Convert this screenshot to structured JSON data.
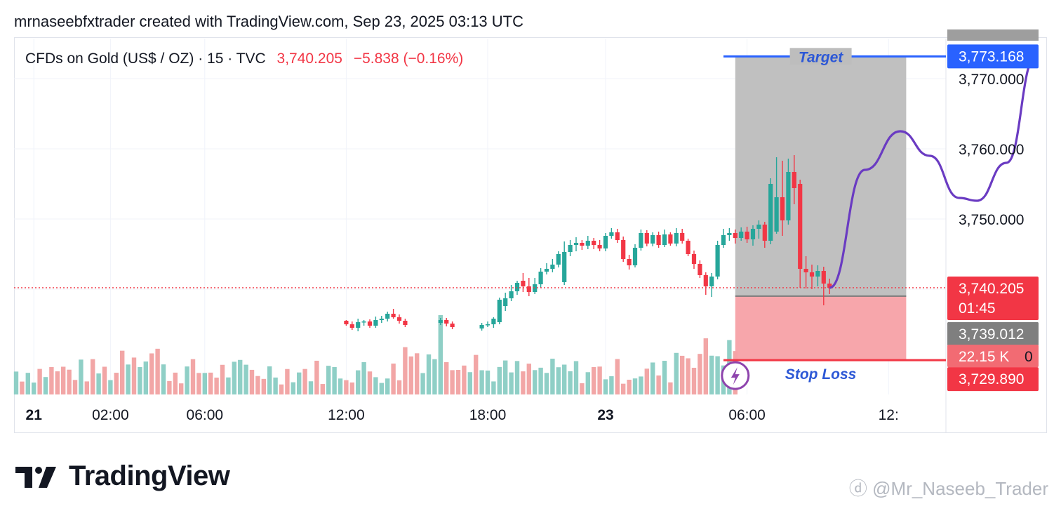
{
  "header": {
    "attribution": "mrnaseebfxtrader created with TradingView.com, Sep 23, 2025 03:13 UTC"
  },
  "symbol": {
    "description": "CFDs on Gold (US$ / OZ) · 15 · TVC",
    "last": "3,740.205",
    "change": "−5.838 (−0.16%)"
  },
  "brand": {
    "name": "TradingView"
  },
  "watermark": {
    "text": "@Mr_Naseeb_Trader"
  },
  "colors": {
    "up": "#26a69a",
    "down": "#f23645",
    "volume_up": "#8fcfc6",
    "volume_down": "#f2a6a6",
    "target_line": "#2962ff",
    "target_text": "#2d58d6",
    "profit_zone": "#bdbdbd",
    "loss_zone": "#f7a1a7",
    "projection": "#6a3bc2",
    "stop_line": "#f23645"
  },
  "chart_data": {
    "type": "candlestick",
    "symbol": "CFDs on Gold (US$ / OZ)",
    "interval": "15",
    "ylim": [
      3735.0,
      3775.0
    ],
    "price_ticks": [
      "3,770.000",
      "3,760.000",
      "3,750.000"
    ],
    "time_labels": [
      {
        "label": "21",
        "bold": true,
        "bar": 3
      },
      {
        "label": "02:00",
        "bold": false,
        "bar": 16
      },
      {
        "label": "06:00",
        "bold": false,
        "bar": 32
      },
      {
        "label": "12:00",
        "bold": false,
        "bar": 56
      },
      {
        "label": "18:00",
        "bold": false,
        "bar": 80
      },
      {
        "label": "23",
        "bold": true,
        "bar": 100
      },
      {
        "label": "06:00",
        "bold": false,
        "bar": 124
      },
      {
        "label": "12:",
        "bold": false,
        "bar": 148
      }
    ],
    "candles": [
      [
        56,
        3735.5,
        3735.0,
        3735.6,
        3734.8
      ],
      [
        57,
        3735.0,
        3734.5,
        3735.4,
        3734.2
      ],
      [
        58,
        3734.5,
        3735.3,
        3735.8,
        3734.0
      ],
      [
        59,
        3735.3,
        3735.4,
        3735.6,
        3734.8
      ],
      [
        60,
        3735.4,
        3734.8,
        3735.7,
        3734.5
      ],
      [
        61,
        3734.8,
        3735.6,
        3736.1,
        3734.5
      ],
      [
        62,
        3735.6,
        3735.8,
        3736.2,
        3735.2
      ],
      [
        63,
        3735.8,
        3736.5,
        3736.8,
        3735.4
      ],
      [
        64,
        3736.5,
        3736.0,
        3737.2,
        3735.8
      ],
      [
        65,
        3736.0,
        3735.5,
        3736.4,
        3735.1
      ],
      [
        66,
        3735.5,
        3734.9,
        3735.8,
        3734.6
      ],
      [
        72,
        3735.2,
        3735.6,
        3735.9,
        3734.9
      ],
      [
        73,
        3735.6,
        3735.1,
        3735.9,
        3734.7
      ],
      [
        74,
        3735.1,
        3734.6,
        3735.4,
        3734.3
      ],
      [
        79,
        3734.4,
        3734.9,
        3735.2,
        3734.1
      ],
      [
        80,
        3734.9,
        3735.0,
        3735.4,
        3734.6
      ],
      [
        81,
        3735.0,
        3735.8,
        3736.0,
        3734.5
      ],
      [
        82,
        3735.3,
        3738.5,
        3738.8,
        3735.0
      ],
      [
        83,
        3737.6,
        3738.7,
        3739.5,
        3736.9
      ],
      [
        84,
        3738.7,
        3739.7,
        3740.6,
        3738.3
      ],
      [
        85,
        3739.7,
        3740.9,
        3741.2,
        3739.2
      ],
      [
        86,
        3741.2,
        3740.4,
        3742.3,
        3739.6
      ],
      [
        87,
        3740.4,
        3739.6,
        3741.6,
        3739.0
      ],
      [
        88,
        3739.6,
        3740.7,
        3741.6,
        3739.3
      ],
      [
        89,
        3740.7,
        3742.5,
        3743.0,
        3740.2
      ],
      [
        90,
        3742.5,
        3742.9,
        3743.7,
        3742.1
      ],
      [
        91,
        3742.9,
        3743.5,
        3744.3,
        3742.4
      ],
      [
        92,
        3743.5,
        3745.0,
        3745.4,
        3743.1
      ],
      [
        93,
        3741.0,
        3745.3,
        3746.8,
        3740.6
      ],
      [
        94,
        3745.3,
        3746.3,
        3747.0,
        3744.7
      ],
      [
        95,
        3746.3,
        3746.6,
        3747.4,
        3745.4
      ],
      [
        96,
        3746.6,
        3746.2,
        3747.0,
        3745.6
      ],
      [
        97,
        3746.2,
        3746.9,
        3747.6,
        3745.7
      ],
      [
        98,
        3746.9,
        3746.3,
        3747.3,
        3745.7
      ],
      [
        99,
        3746.3,
        3745.8,
        3747.0,
        3745.4
      ],
      [
        100,
        3745.8,
        3747.6,
        3748.0,
        3745.4
      ],
      [
        101,
        3747.6,
        3748.1,
        3748.7,
        3747.2
      ],
      [
        102,
        3748.1,
        3747.0,
        3748.6,
        3746.6
      ],
      [
        103,
        3747.0,
        3744.3,
        3747.5,
        3743.9
      ],
      [
        104,
        3744.3,
        3743.4,
        3744.9,
        3742.8
      ],
      [
        105,
        3743.4,
        3745.9,
        3746.4,
        3743.1
      ],
      [
        106,
        3745.9,
        3748.0,
        3748.5,
        3745.5
      ],
      [
        107,
        3748.0,
        3746.5,
        3748.4,
        3746.1
      ],
      [
        108,
        3746.5,
        3747.7,
        3748.1,
        3746.1
      ],
      [
        109,
        3747.7,
        3746.3,
        3748.2,
        3745.9
      ],
      [
        110,
        3746.3,
        3747.8,
        3748.5,
        3746.0
      ],
      [
        111,
        3747.8,
        3746.5,
        3748.1,
        3746.2
      ],
      [
        112,
        3746.5,
        3748.0,
        3748.7,
        3746.1
      ],
      [
        113,
        3748.0,
        3746.9,
        3748.6,
        3746.5
      ],
      [
        114,
        3746.9,
        3745.0,
        3747.2,
        3744.7
      ],
      [
        115,
        3745.0,
        3743.6,
        3745.5,
        3742.9
      ],
      [
        116,
        3743.6,
        3742.0,
        3744.1,
        3741.6
      ],
      [
        117,
        3742.0,
        3740.4,
        3742.4,
        3739.2
      ],
      [
        118,
        3740.4,
        3741.8,
        3742.3,
        3738.9
      ],
      [
        119,
        3741.8,
        3746.3,
        3746.9,
        3741.4
      ],
      [
        120,
        3746.3,
        3747.7,
        3748.6,
        3745.9
      ],
      [
        121,
        3747.7,
        3748.0,
        3748.7,
        3746.9
      ],
      [
        122,
        3748.0,
        3747.3,
        3748.5,
        3746.5
      ],
      [
        123,
        3747.3,
        3748.2,
        3748.8,
        3746.9
      ],
      [
        124,
        3748.2,
        3747.1,
        3748.9,
        3746.6
      ],
      [
        125,
        3747.1,
        3748.6,
        3749.1,
        3746.2
      ],
      [
        126,
        3748.6,
        3749.2,
        3749.8,
        3747.2
      ],
      [
        127,
        3749.2,
        3746.9,
        3749.6,
        3745.9
      ],
      [
        128,
        3746.9,
        3755.0,
        3755.8,
        3746.4
      ],
      [
        129,
        3748.2,
        3753.1,
        3758.8,
        3747.9
      ],
      [
        130,
        3753.1,
        3749.8,
        3758.3,
        3747.6
      ],
      [
        131,
        3749.8,
        3756.7,
        3758.6,
        3749.2
      ],
      [
        132,
        3756.7,
        3754.4,
        3759.1,
        3752.1
      ],
      [
        133,
        3755.0,
        3742.9,
        3755.6,
        3740.2
      ],
      [
        134,
        3742.9,
        3742.4,
        3744.7,
        3740.1
      ],
      [
        135,
        3742.4,
        3741.8,
        3743.5,
        3740.0
      ],
      [
        136,
        3741.8,
        3742.6,
        3743.4,
        3740.4
      ],
      [
        137,
        3742.6,
        3740.8,
        3743.2,
        3737.7
      ],
      [
        138,
        3740.8,
        3740.2,
        3741.5,
        3739.3
      ]
    ],
    "volume_bars": [
      {
        "n": 20,
        "dir": "up",
        "vol": 0.35
      },
      {
        "n": 20,
        "dir": "down",
        "vol": 0.4
      },
      {
        "n": 20,
        "dir": "up",
        "vol": 0.45
      }
    ],
    "position": {
      "type": "long",
      "entry": "3,739.012",
      "entry_value": 3739.012,
      "target": "3,773.168",
      "target_value": 3773.168,
      "stop": "3,729.890",
      "stop_value": 3729.89,
      "target_label": "Target",
      "stop_label": "Stop Loss",
      "stop_value_badge": "22.15 K",
      "partial_label_top": "3,773.168",
      "partial_label_bottom": "0"
    },
    "last_price": {
      "value": 3740.205,
      "label": "3,740.205",
      "countdown": "01:45"
    },
    "projection": [
      [
        138,
        3740.2
      ],
      [
        144,
        3757.0
      ],
      [
        150,
        3762.5
      ],
      [
        155,
        3759.0
      ],
      [
        160,
        3753.0
      ],
      [
        163,
        3752.6
      ],
      [
        168,
        3758.0
      ],
      [
        173,
        3773.2
      ]
    ]
  }
}
